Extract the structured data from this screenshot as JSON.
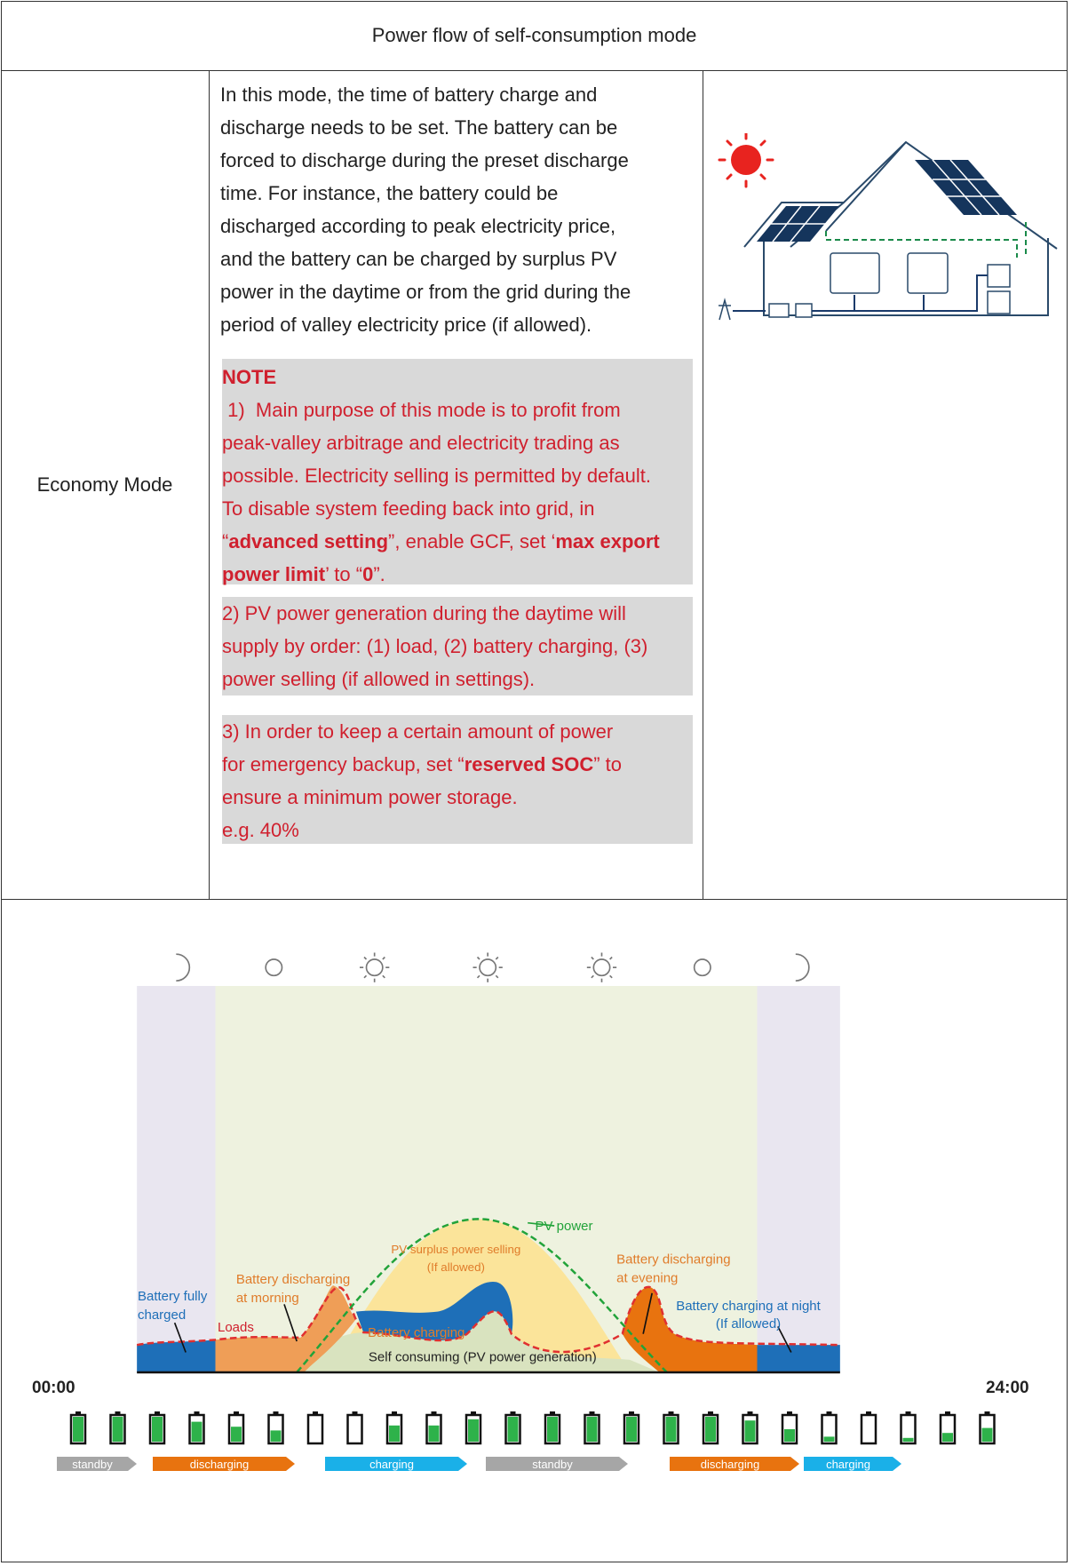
{
  "table": {
    "title": "Power flow of self-consumption mode",
    "mode_label": "Economy Mode"
  },
  "description": {
    "lines": [
      "In this mode, the time of battery charge and",
      "discharge needs to be set. The battery can be",
      "forced to discharge during the preset discharge",
      "time. For instance, the battery could be",
      "discharged according to peak electricity price,",
      "and the battery can be charged by surplus PV",
      "power in the daytime or from the grid during the",
      "period of valley electricity price (if allowed)."
    ]
  },
  "note": {
    "heading": "NOTE",
    "item1": {
      "line1": " 1)  Main purpose of this mode is to profit from",
      "line2": "peak-valley arbitrage and electricity trading as",
      "line3": "possible. Electricity selling is permitted by default.",
      "line4": "To disable system feeding back into grid, in",
      "q1": "“",
      "bold1": "advanced setting",
      "mid1": "”, enable GCF, set ‘",
      "bold2": "max export",
      "bold3": "power limit",
      "mid2": "’ to “",
      "bold4": "0",
      "end": "”."
    },
    "item2": {
      "line1": "2)  PV power generation during the daytime will",
      "line2": "supply by order: (1) load, (2) battery charging, (3)",
      "line3": "power selling (if allowed in settings)."
    },
    "item3": {
      "line1": "3)  In order to keep a certain amount of power",
      "pre": "for emergency backup, set “",
      "bold": "reserved SOC",
      "post": "” to",
      "line3": "ensure a minimum power storage.",
      "line4": "e.g. 40%"
    }
  },
  "chart_data": {
    "type": "area",
    "x_start_label": "00:00",
    "x_end_label": "24:00",
    "labels": {
      "pv_power": "PV power",
      "pv_surplus": "PV surplus power selling",
      "pv_surplus_note": "(If allowed)",
      "batt_dis_morning_1": "Battery discharging",
      "batt_dis_morning_2": "at morning",
      "batt_full_1": "Battery fully",
      "batt_full_2": "charged",
      "loads": "Loads",
      "batt_charging": "Battery charging",
      "self_consuming": "Self consuming (PV power generation)",
      "batt_dis_evening_1": "Battery discharging",
      "batt_dis_evening_2": "at evening",
      "batt_night_1": "Battery charging at night",
      "batt_night_2": "(If allowed)"
    },
    "sky_icons": [
      "moon-icon",
      "cloud-icon",
      "sun-icon",
      "sun-icon",
      "sun-icon",
      "cloud-icon",
      "moon-icon"
    ],
    "battery_levels": [
      1.0,
      1.0,
      1.0,
      0.8,
      0.6,
      0.45,
      0.0,
      0.0,
      0.65,
      0.65,
      0.9,
      1.0,
      1.0,
      1.0,
      1.0,
      1.0,
      1.0,
      0.85,
      0.5,
      0.2,
      0.0,
      0.15,
      0.35,
      0.55
    ],
    "status_bands": [
      {
        "label": "standby",
        "color": "#a6a6a6"
      },
      {
        "label": "discharging",
        "color": "#e8730f"
      },
      {
        "label": "charging",
        "color": "#1ab0e8"
      },
      {
        "label": "standby",
        "color": "#a6a6a6"
      },
      {
        "label": "discharging",
        "color": "#e8730f"
      },
      {
        "label": "charging",
        "color": "#1ab0e8"
      }
    ],
    "colors": {
      "night_bg": "#e9e6f0",
      "day_bg": "#eef2df",
      "pv_fill": "#fbe49a",
      "self_fill": "#d9e3bf",
      "batt_blue": "#1e6fb8",
      "batt_orange_light": "#ef9e57",
      "batt_orange": "#e8730f",
      "loads_red": "#e03030",
      "pv_green": "#22a33a",
      "label_blue": "#1e6fb8",
      "label_orange": "#e07c2a",
      "label_red": "#d0202e",
      "battery_green": "#2eb24a"
    }
  }
}
